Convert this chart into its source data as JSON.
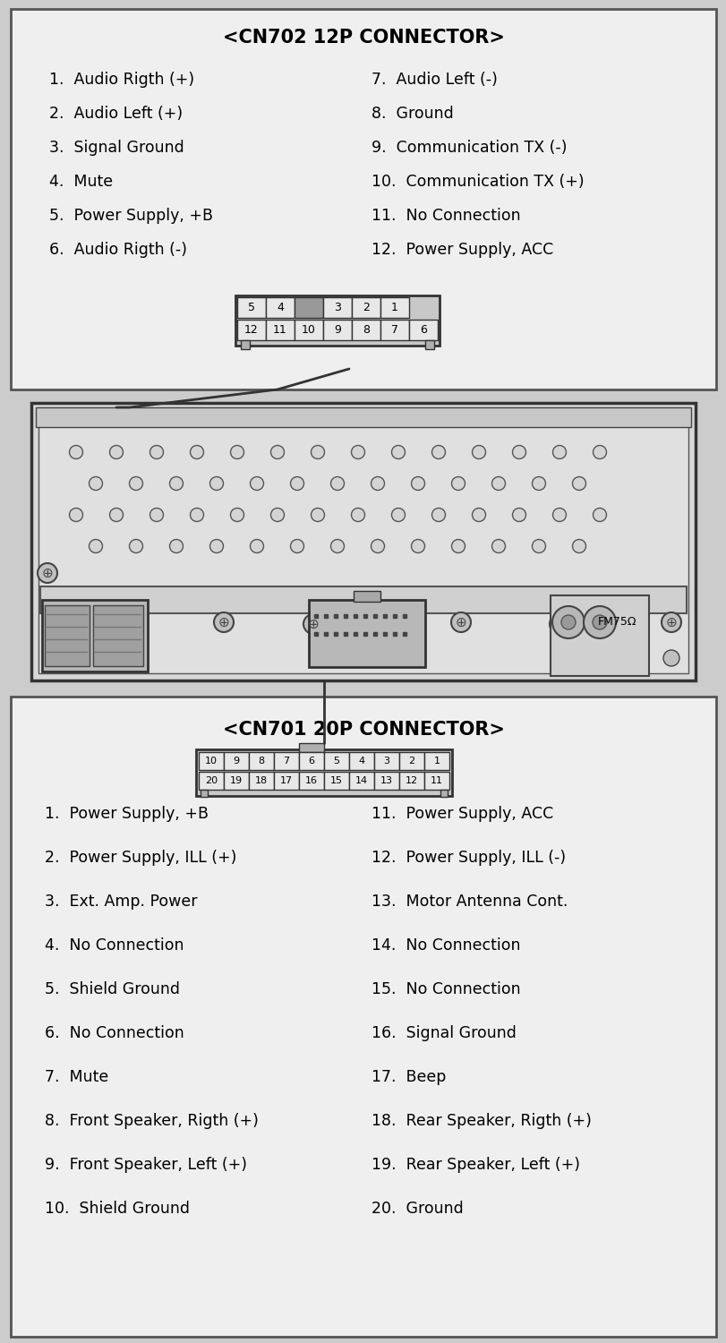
{
  "bg_color": "#cccccc",
  "box_fc": "#efefef",
  "box_ec": "#555555",
  "cn702_title": "<CN702 12P CONNECTOR>",
  "cn702_left": [
    "1.  Audio Rigth (+)",
    "2.  Audio Left (+)",
    "3.  Signal Ground",
    "4.  Mute",
    "5.  Power Supply, +B",
    "6.  Audio Rigth (-)"
  ],
  "cn702_right": [
    "7.  Audio Left (-)",
    "8.  Ground",
    "9.  Communication TX (-)",
    "10.  Communication TX (+)",
    "11.  No Connection",
    "12.  Power Supply, ACC"
  ],
  "cn701_title": "<CN701 20P CONNECTOR>",
  "cn701_left": [
    "1.  Power Supply, +B",
    "2.  Power Supply, ILL (+)",
    "3.  Ext. Amp. Power",
    "4.  No Connection",
    "5.  Shield Ground",
    "6.  No Connection",
    "7.  Mute",
    "8.  Front Speaker, Rigth (+)",
    "9.  Front Speaker, Left (+)",
    "10.  Shield Ground"
  ],
  "cn701_right": [
    "11.  Power Supply, ACC",
    "12.  Power Supply, ILL (-)",
    "13.  Motor Antenna Cont.",
    "14.  No Connection",
    "15.  No Connection",
    "16.  Signal Ground",
    "17.  Beep",
    "18.  Rear Speaker, Rigth (+)",
    "19.  Rear Speaker, Left (+)",
    "20.  Ground"
  ]
}
